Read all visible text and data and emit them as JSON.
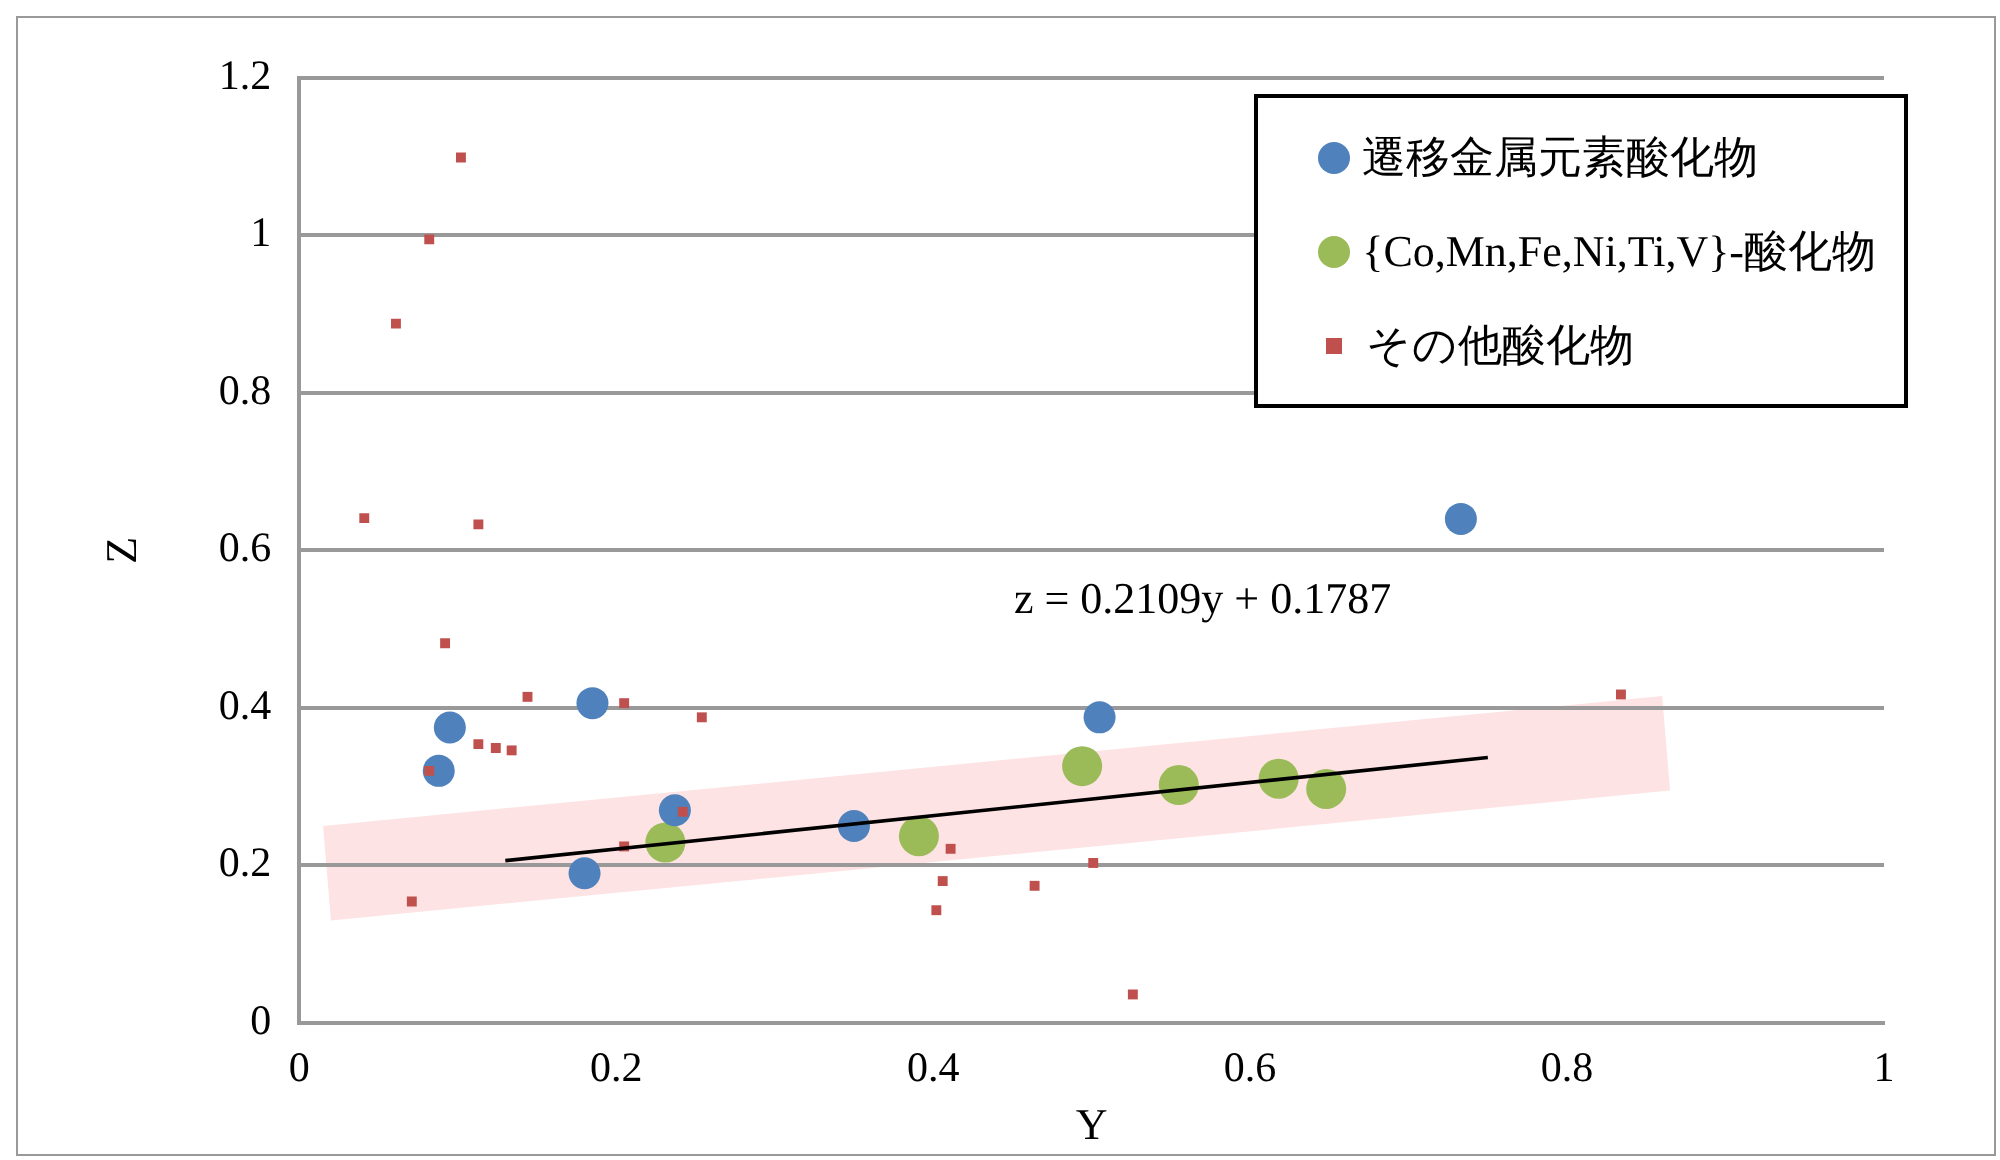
{
  "chart_data": {
    "type": "scatter",
    "xlabel": "Y",
    "ylabel": "Z",
    "xlim": [
      0,
      1
    ],
    "ylim": [
      0,
      1.2
    ],
    "xticks": [
      0,
      0.2,
      0.4,
      0.6,
      0.8,
      1
    ],
    "yticks": [
      0,
      0.2,
      0.4,
      0.6,
      0.8,
      1,
      1.2
    ],
    "grid": "y",
    "legend": "top right",
    "annotations": [
      "z = 0.2109y + 0.1787"
    ],
    "series": [
      {
        "name": "遷移金属元素酸化物",
        "color": "#4f81bd",
        "marker": "circle",
        "x": [
          0.088,
          0.095,
          0.185,
          0.18,
          0.237,
          0.35,
          0.505,
          0.733
        ],
        "values": [
          0.32,
          0.375,
          0.406,
          0.19,
          0.27,
          0.25,
          0.388,
          0.64
        ]
      },
      {
        "name": "{Co,Mn,Fe,Ni,Ti,V}-酸化物",
        "color": "#9bbb59",
        "marker": "circle",
        "x": [
          0.231,
          0.391,
          0.494,
          0.555,
          0.618,
          0.648
        ],
        "values": [
          0.229,
          0.237,
          0.326,
          0.302,
          0.31,
          0.297
        ]
      },
      {
        "name": "その他酸化物",
        "color": "#c0504d",
        "marker": "square",
        "x": [
          0.041,
          0.061,
          0.082,
          0.102,
          0.113,
          0.092,
          0.082,
          0.071,
          0.144,
          0.113,
          0.124,
          0.134,
          0.205,
          0.254,
          0.242,
          0.205,
          0.411,
          0.406,
          0.402,
          0.464,
          0.501,
          0.526,
          0.834
        ],
        "values": [
          0.641,
          0.888,
          0.995,
          1.099,
          0.633,
          0.482,
          0.32,
          0.154,
          0.414,
          0.354,
          0.349,
          0.346,
          0.406,
          0.388,
          0.268,
          0.224,
          0.221,
          0.18,
          0.143,
          0.174,
          0.203,
          0.036,
          0.417
        ]
      },
      {
        "type": "line",
        "color": "#000000",
        "marker": "none",
        "x": [
          0.13,
          0.75
        ],
        "values": [
          0.206,
          0.337
        ]
      }
    ]
  }
}
